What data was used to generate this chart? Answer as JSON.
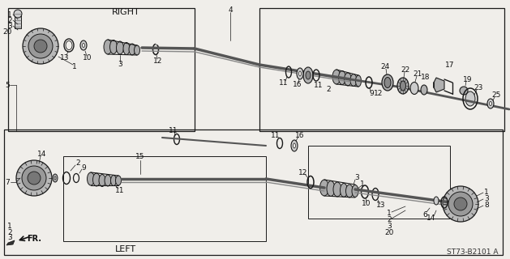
{
  "bg_color": "#f0eeea",
  "diagram_code": "ST73-B2101 A",
  "right_label": "RIGHT",
  "left_label": "LEFT",
  "fr_label": "FR.",
  "line_color": "#1a1a1a",
  "part_gray": "#888888",
  "part_light": "#cccccc",
  "part_dark": "#444444",
  "box_color": "#1a1a1a",
  "label_fs": 6.5,
  "white": "#ffffff"
}
